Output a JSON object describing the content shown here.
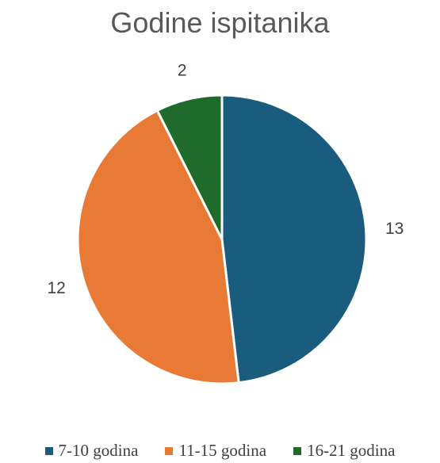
{
  "chart_data": {
    "type": "pie",
    "title": "Godine ispitanika",
    "categories": [
      "7-10 godina",
      "11-15 godina",
      "16-21 godina"
    ],
    "values": [
      13,
      12,
      2
    ],
    "colors": [
      "#1a5c7e",
      "#e97a35",
      "#1f6b2b"
    ],
    "start_angle_deg": 0,
    "direction": "clockwise",
    "legend_position": "bottom",
    "data_labels": [
      "13",
      "12",
      "2"
    ]
  }
}
